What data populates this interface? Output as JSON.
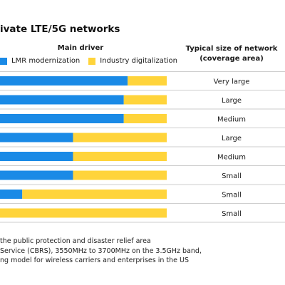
{
  "title": "ivate LTE/5G networks",
  "header": {
    "main_driver": "Main driver",
    "size_line1": "Typical size of network",
    "size_line2": "(coverage area)"
  },
  "legend": [
    {
      "label": "LMR modernization",
      "color": "#1a8ae6"
    },
    {
      "label": "Industry digitalization",
      "color": "#ffd43b"
    }
  ],
  "chart_data": {
    "type": "bar",
    "orientation": "horizontal",
    "stacked": true,
    "xlim": [
      0,
      100
    ],
    "categories": [
      "",
      "",
      "",
      "",
      "",
      "",
      "",
      ""
    ],
    "series": [
      {
        "name": "LMR modernization",
        "color": "#1a8ae6",
        "values": [
          80,
          78,
          78,
          52,
          52,
          52,
          26,
          10
        ]
      },
      {
        "name": "Industry digitalization",
        "color": "#ffd43b",
        "values": [
          20,
          22,
          22,
          48,
          48,
          48,
          74,
          90
        ]
      }
    ],
    "coverage": [
      "Very large",
      "Large",
      "Medium",
      "Large",
      "Medium",
      "Small",
      "Small",
      "Small"
    ]
  },
  "footnotes": [
    "the public protection and disaster relief area",
    "Service (CBRS), 3550MHz to 3700MHz on the 3.5GHz band,",
    "ng model for wireless carriers and enterprises in the US"
  ]
}
